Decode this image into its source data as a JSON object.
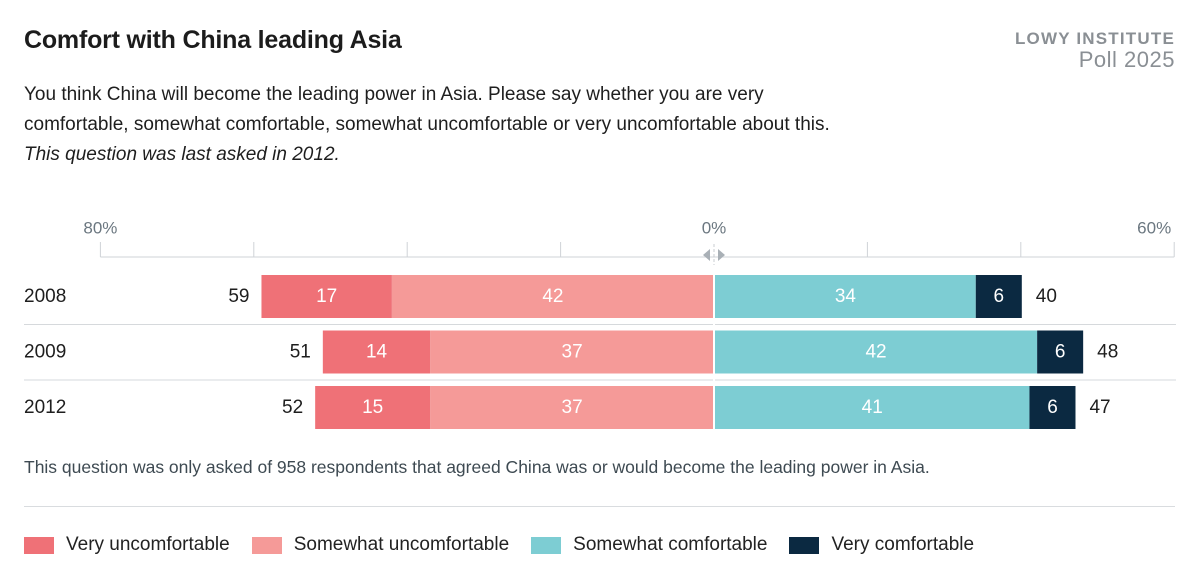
{
  "header": {
    "title": "Comfort with China leading Asia",
    "brand_line1": "LOWY INSTITUTE",
    "brand_line2": "Poll 2025"
  },
  "question": {
    "text": "You think China will become the leading power in Asia. Please say whether you are very comfortable, somewhat comfortable, somewhat uncomfortable or very uncomfortable about this.",
    "last_asked": "This question was last asked in 2012."
  },
  "note": "This question was only asked of 958 respondents that agreed China was or would become the leading power in Asia.",
  "colors": {
    "very_uncomfortable": "#ef7177",
    "somewhat_uncomfortable": "#f59a98",
    "somewhat_comfortable": "#7dcdd3",
    "very_comfortable": "#0b2941"
  },
  "chart_data": {
    "type": "bar",
    "orientation": "horizontal-diverging-stacked",
    "axis": {
      "left_label": "80%",
      "center_label": "0%",
      "right_label": "60%",
      "left_max": 80,
      "right_max": 60
    },
    "categories": [
      "2008",
      "2009",
      "2012"
    ],
    "series": [
      {
        "name": "Very uncomfortable",
        "side": "negative",
        "values": [
          17,
          14,
          15
        ]
      },
      {
        "name": "Somewhat uncomfortable",
        "side": "negative",
        "values": [
          42,
          37,
          37
        ]
      },
      {
        "name": "Somewhat comfortable",
        "side": "positive",
        "values": [
          34,
          42,
          41
        ]
      },
      {
        "name": "Very comfortable",
        "side": "positive",
        "values": [
          6,
          6,
          6
        ]
      }
    ],
    "negative_totals": [
      59,
      51,
      52
    ],
    "positive_totals": [
      40,
      48,
      47
    ],
    "grid": true,
    "legend_position": "bottom"
  }
}
